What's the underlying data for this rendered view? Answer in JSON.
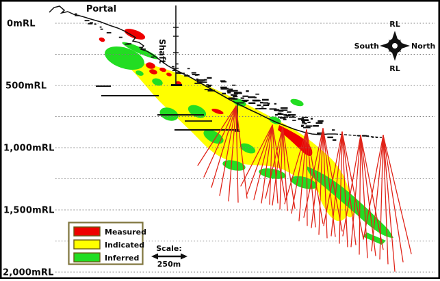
{
  "annotations": {
    "portal": "Portal",
    "shaft": "Shaft"
  },
  "y_axis": {
    "labels": [
      "0mRL",
      "500mRL",
      "1,000mRL",
      "1,500mRL",
      "2,000mRL"
    ]
  },
  "legend": {
    "items": [
      {
        "label": "Measured",
        "color": "#ee0000"
      },
      {
        "label": "Indicated",
        "color": "#ffff00"
      },
      {
        "label": "Inferred",
        "color": "#22dd22"
      }
    ]
  },
  "scale_bar": {
    "title": "Scale:",
    "length": "250m"
  },
  "compass": {
    "top": "RL",
    "bottom": "RL",
    "left": "South",
    "right": "North"
  },
  "colors": {
    "measured": "#ee0000",
    "indicated": "#ffff00",
    "inferred": "#22dd22",
    "drill": "#e02318",
    "workings": "#101010",
    "grid": "#7c7c7c",
    "legend_border": "#80763e",
    "border": "#000000",
    "background": "#ffffff"
  }
}
